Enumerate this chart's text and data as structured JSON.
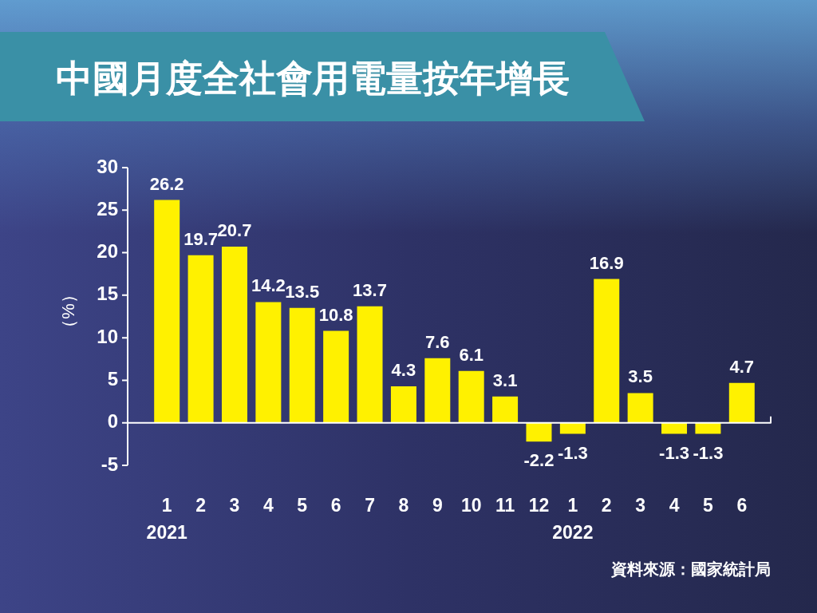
{
  "chart_data": {
    "type": "bar",
    "title": "中國月度全社會用電量按年增長",
    "ylabel": "（%）",
    "categories": [
      "1\n2021",
      "2",
      "3",
      "4",
      "5",
      "6",
      "7",
      "8",
      "9",
      "10",
      "11",
      "12",
      "1\n2022",
      "2",
      "3",
      "4",
      "5",
      "6"
    ],
    "values": [
      26.2,
      19.7,
      20.7,
      14.2,
      13.5,
      10.8,
      13.7,
      4.3,
      7.6,
      6.1,
      3.1,
      -2.2,
      -1.3,
      16.9,
      3.5,
      -1.3,
      -1.3,
      4.7
    ],
    "color": "#fff100",
    "ylim": [
      -5,
      30
    ],
    "yticks": [
      -5,
      0,
      5,
      10,
      15,
      20,
      25,
      30
    ],
    "data_labels": true,
    "ref_lines": [
      {
        "axis": "y",
        "value": 0,
        "color": "#ffffff"
      }
    ],
    "annotations": [
      "資料來源：國家統計局"
    ]
  }
}
